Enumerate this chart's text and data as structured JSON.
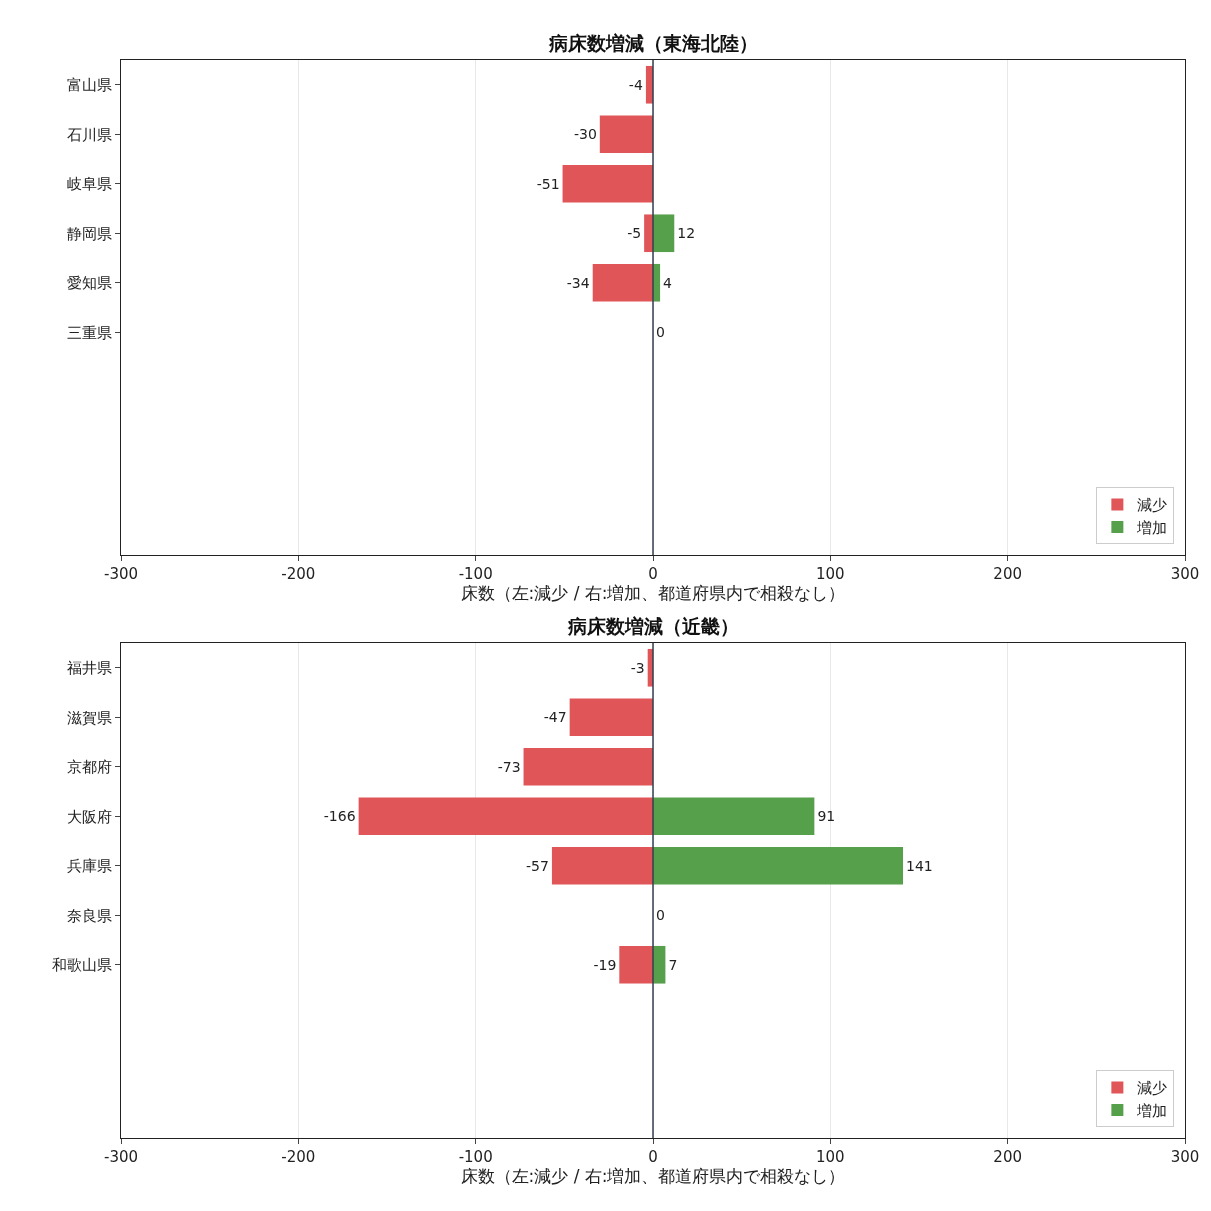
{
  "chart_data": [
    {
      "type": "bar",
      "orientation": "horizontal",
      "stacked": true,
      "title": "病床数増減（東海北陸）",
      "xlabel": "床数（左:減少 / 右:増加、都道府県内で相殺なし）",
      "categories": [
        "富山県",
        "石川県",
        "岐阜県",
        "静岡県",
        "愛知県",
        "三重県",
        null,
        null,
        null,
        null
      ],
      "series": [
        {
          "name": "減少",
          "color": "#e05558",
          "values": [
            -4,
            -30,
            -51,
            -5,
            -34,
            0,
            null,
            null,
            null,
            null
          ],
          "value_labels": [
            "-4",
            "-30",
            "-51",
            "-5",
            "-34",
            null,
            null,
            null,
            null,
            null
          ]
        },
        {
          "name": "増加",
          "color": "#57a04b",
          "values": [
            null,
            null,
            null,
            12,
            4,
            0,
            null,
            null,
            null,
            null
          ],
          "value_labels": [
            null,
            null,
            null,
            "12",
            "4",
            "0",
            null,
            null,
            null,
            null
          ]
        }
      ],
      "xlim": [
        -300,
        300
      ],
      "xticks": [
        -300,
        -200,
        -100,
        0,
        100,
        200,
        300
      ],
      "grid": "x",
      "legend": "bottom right",
      "ref_lines": [
        {
          "axis": "x",
          "value": 0,
          "color": "#333f4f"
        }
      ]
    },
    {
      "type": "bar",
      "orientation": "horizontal",
      "stacked": true,
      "title": "病床数増減（近畿）",
      "xlabel": "床数（左:減少 / 右:増加、都道府県内で相殺なし）",
      "categories": [
        "福井県",
        "滋賀県",
        "京都府",
        "大阪府",
        "兵庫県",
        "奈良県",
        "和歌山県",
        null,
        null,
        null
      ],
      "series": [
        {
          "name": "減少",
          "color": "#e05558",
          "values": [
            -3,
            -47,
            -73,
            -166,
            -57,
            0,
            -19,
            null,
            null,
            null
          ],
          "value_labels": [
            "-3",
            "-47",
            "-73",
            "-166",
            "-57",
            null,
            "-19",
            null,
            null,
            null
          ]
        },
        {
          "name": "増加",
          "color": "#57a04b",
          "values": [
            null,
            null,
            null,
            91,
            141,
            0,
            7,
            null,
            null,
            null
          ],
          "value_labels": [
            null,
            null,
            null,
            "91",
            "141",
            "0",
            "7",
            null,
            null,
            null
          ]
        }
      ],
      "xlim": [
        -300,
        300
      ],
      "xticks": [
        -300,
        -200,
        -100,
        0,
        100,
        200,
        300
      ],
      "grid": "x",
      "legend": "bottom right",
      "ref_lines": [
        {
          "axis": "x",
          "value": 0,
          "color": "#333f4f"
        }
      ]
    }
  ]
}
